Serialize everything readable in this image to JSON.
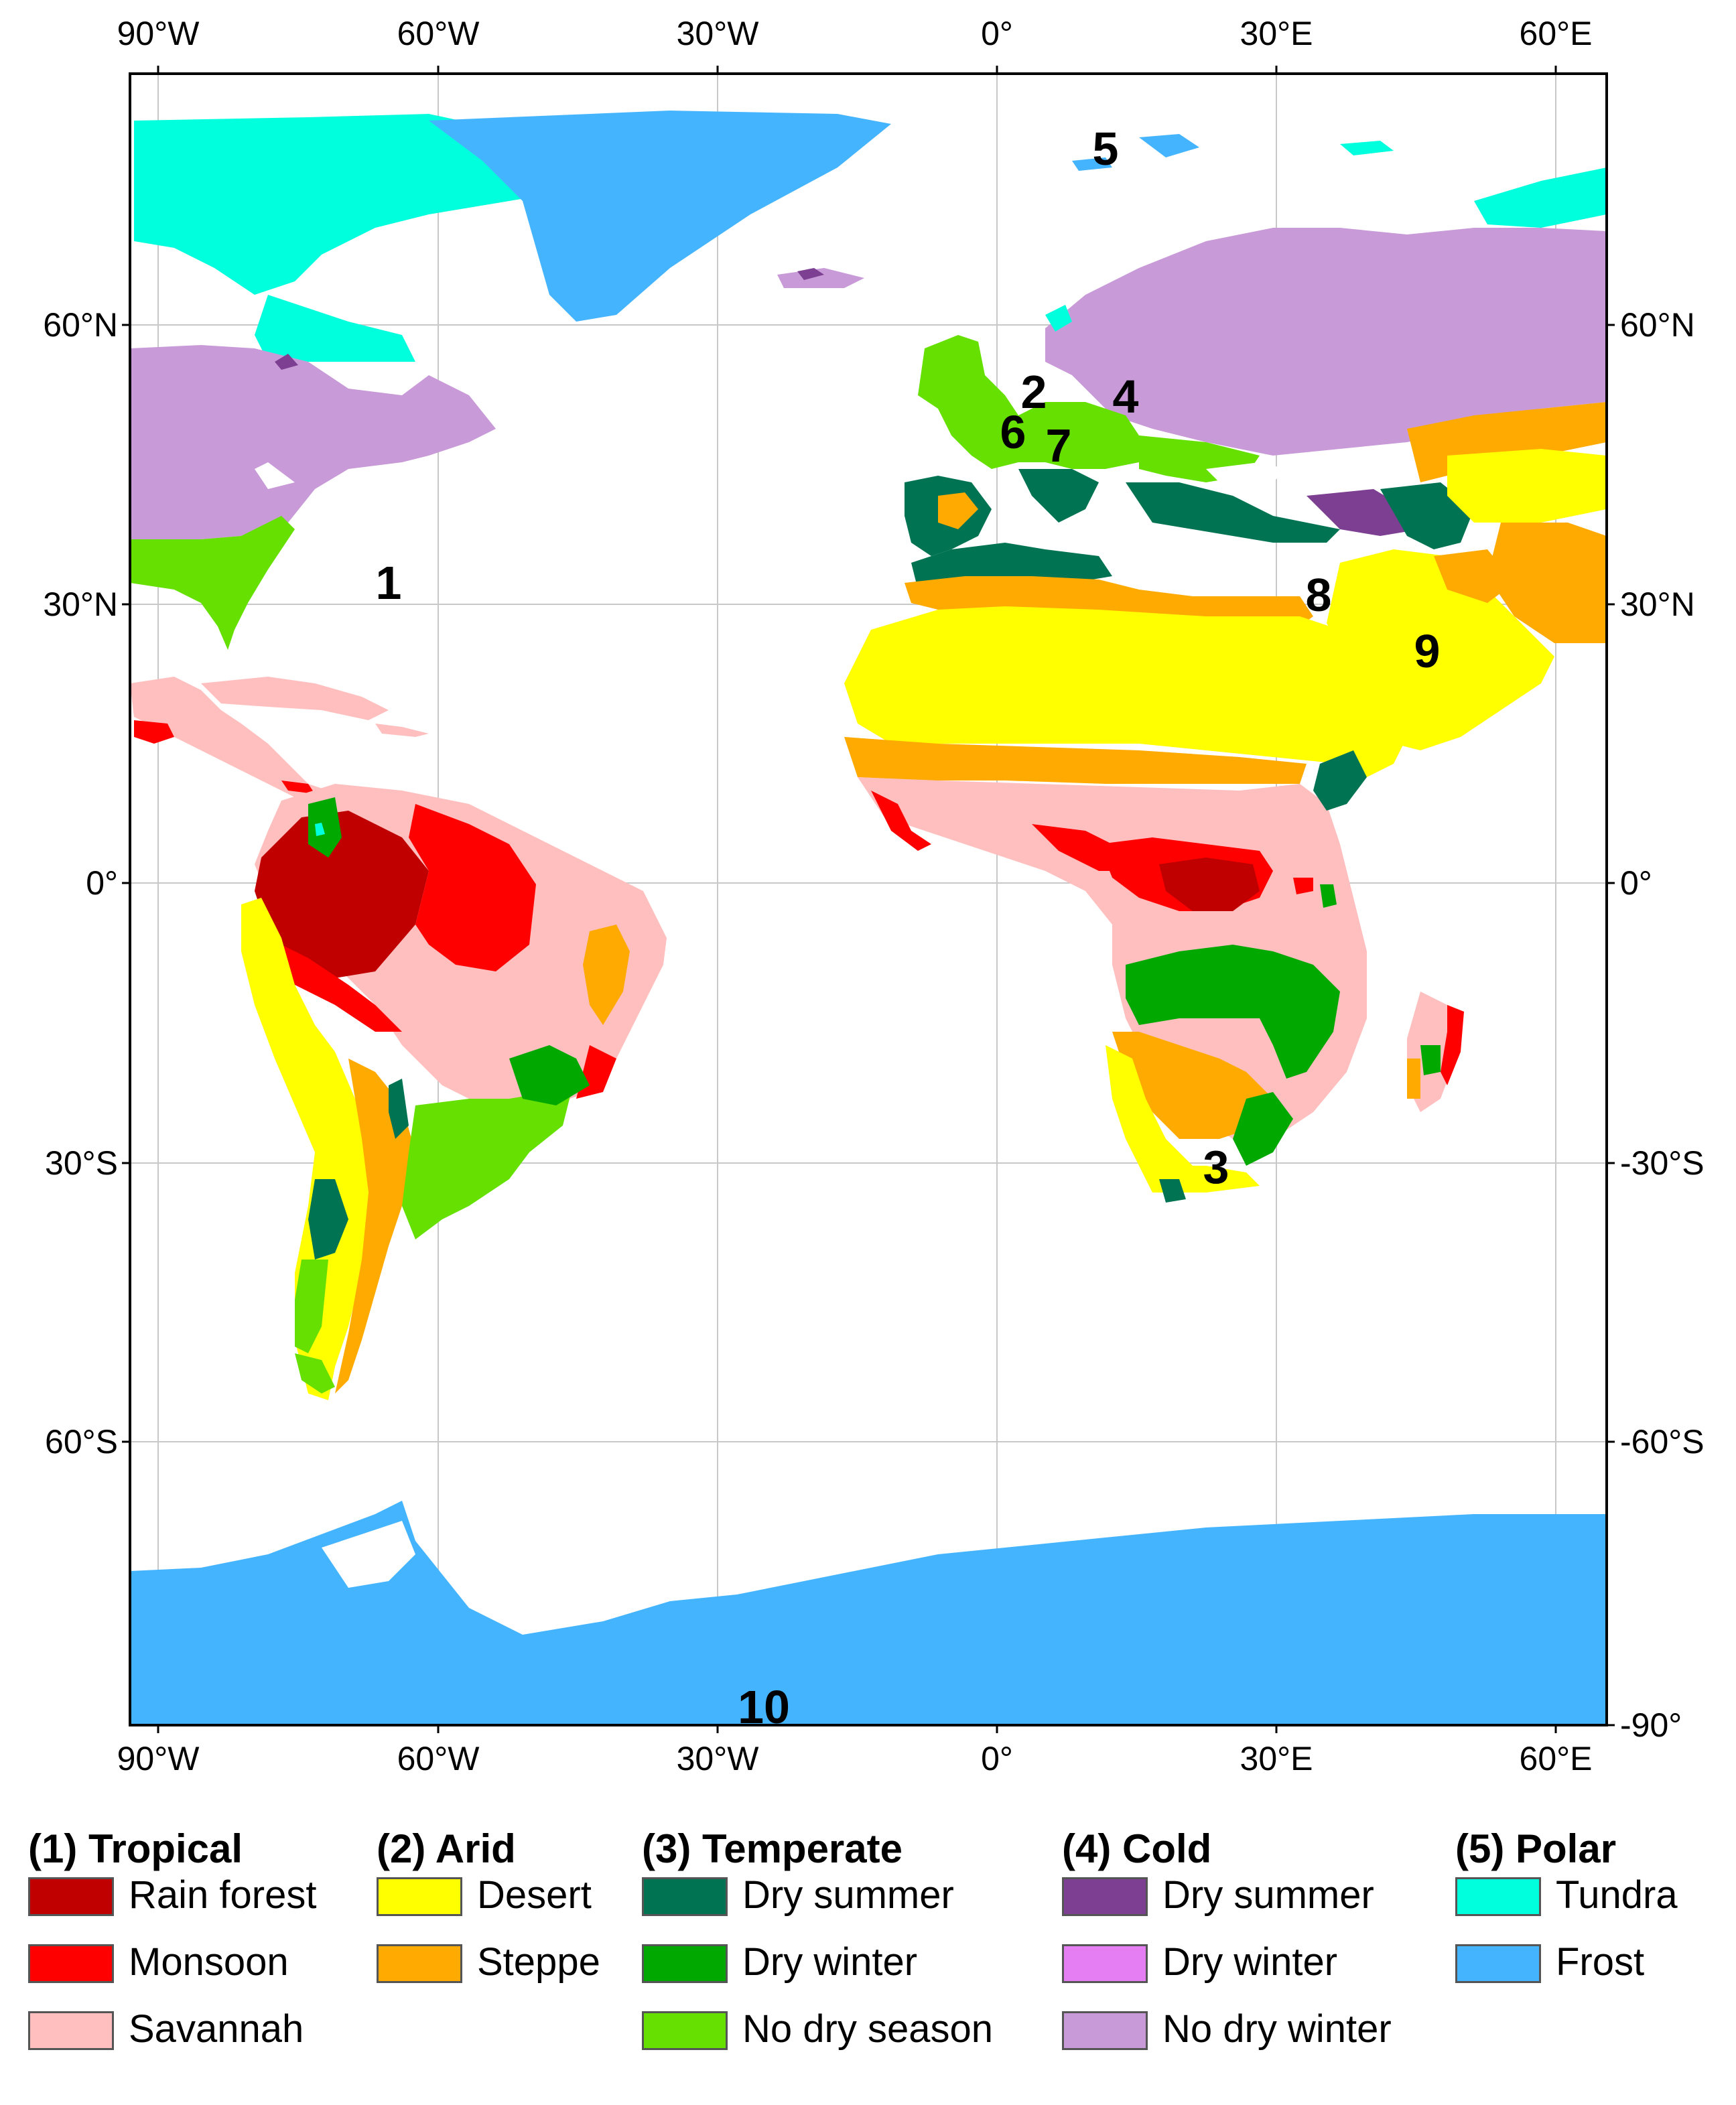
{
  "map": {
    "lon_ticks": [
      "90°W",
      "60°W",
      "30°W",
      "0°",
      "30°E",
      "60°E"
    ],
    "lat_ticks_left": [
      "60°N",
      "30°N",
      "0°",
      "30°S",
      "60°S"
    ],
    "lat_ticks_right": [
      "60°N",
      "30°N",
      "0°",
      "-30°S",
      "-60°S",
      "-90°"
    ],
    "region_labels": [
      "1",
      "2",
      "3",
      "4",
      "5",
      "6",
      "7",
      "8",
      "9",
      "10"
    ]
  },
  "colors": {
    "rain_forest": "#c00000",
    "monsoon": "#ff0000",
    "savannah": "#ffbfbf",
    "desert": "#ffff00",
    "steppe": "#ffaa00",
    "temperate_dry_summer": "#007352",
    "temperate_dry_winter": "#00a800",
    "no_dry_season": "#66e000",
    "cold_dry_summer": "#7d3f91",
    "cold_dry_winter": "#e57ef2",
    "no_dry_winter": "#c89ad8",
    "tundra": "#00ffdd",
    "frost": "#45b4ff",
    "ocean": "#ffffff"
  },
  "legend": {
    "groups": [
      {
        "title": "(1) Tropical",
        "items": [
          {
            "label": "Rain forest",
            "color": "#c00000"
          },
          {
            "label": "Monsoon",
            "color": "#ff0000"
          },
          {
            "label": "Savannah",
            "color": "#ffbfbf"
          }
        ]
      },
      {
        "title": "(2) Arid",
        "items": [
          {
            "label": "Desert",
            "color": "#ffff00"
          },
          {
            "label": "Steppe",
            "color": "#ffaa00"
          }
        ]
      },
      {
        "title": "(3) Temperate",
        "items": [
          {
            "label": "Dry summer",
            "color": "#007352"
          },
          {
            "label": "Dry winter",
            "color": "#00a800"
          },
          {
            "label": "No dry season",
            "color": "#66e000"
          }
        ]
      },
      {
        "title": "(4) Cold",
        "items": [
          {
            "label": "Dry summer",
            "color": "#7d3f91"
          },
          {
            "label": "Dry winter",
            "color": "#e57ef2"
          },
          {
            "label": "No dry winter",
            "color": "#c89ad8"
          }
        ]
      },
      {
        "title": "(5) Polar",
        "items": [
          {
            "label": "Tundra",
            "color": "#00ffdd"
          },
          {
            "label": "Frost",
            "color": "#45b4ff"
          }
        ]
      }
    ]
  }
}
